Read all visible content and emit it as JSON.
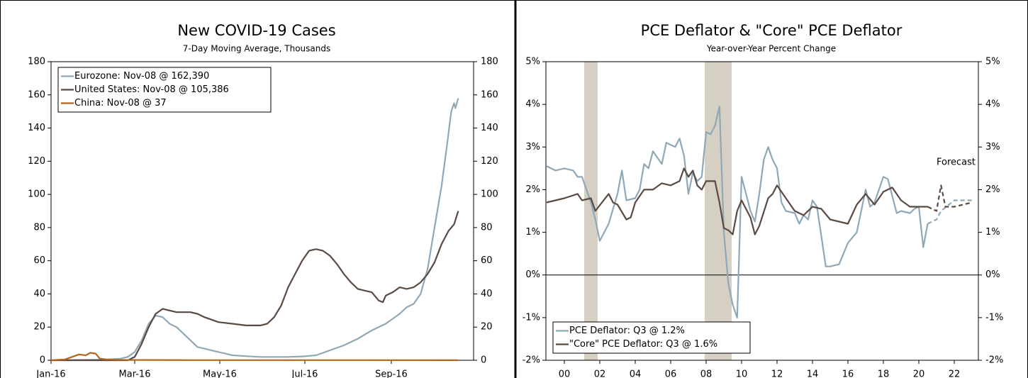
{
  "chart_data": [
    {
      "type": "line",
      "title": "New COVID-19 Cases",
      "subtitle": "7-Day Moving Average, Thousands",
      "xlim": [
        0,
        303
      ],
      "xticks": [
        {
          "value": 0,
          "label": "Jan-16"
        },
        {
          "value": 60,
          "label": "Mar-16"
        },
        {
          "value": 121,
          "label": "May-16"
        },
        {
          "value": 182,
          "label": "Jul-16"
        },
        {
          "value": 244,
          "label": "Sep-16"
        }
      ],
      "ylim": [
        0,
        180
      ],
      "yticks": [
        0,
        20,
        40,
        60,
        80,
        100,
        120,
        140,
        160,
        180
      ],
      "legend": "upper left",
      "series": [
        {
          "name": "Eurozone: Nov-08 @ 162,390",
          "color": "#8fa8b8",
          "x": [
            0,
            20,
            30,
            40,
            50,
            55,
            60,
            65,
            70,
            75,
            80,
            85,
            90,
            95,
            100,
            105,
            110,
            115,
            120,
            125,
            130,
            140,
            150,
            160,
            170,
            180,
            190,
            200,
            210,
            220,
            230,
            240,
            250,
            255,
            260,
            265,
            270,
            275,
            280,
            284,
            287,
            289,
            290,
            292
          ],
          "values": [
            0,
            0.2,
            0.3,
            0.5,
            1,
            2,
            5,
            12,
            22,
            27,
            26,
            22,
            20,
            16,
            12,
            8,
            7,
            6,
            5,
            4,
            3,
            2.5,
            2,
            2,
            2,
            2.3,
            3,
            6,
            9,
            13,
            18,
            22,
            28,
            32,
            34,
            40,
            55,
            80,
            105,
            130,
            150,
            155,
            152,
            158
          ]
        },
        {
          "name": "United States: Nov-08 @ 105,386",
          "color": "#5a4a42",
          "x": [
            0,
            55,
            60,
            65,
            70,
            75,
            80,
            85,
            90,
            100,
            105,
            110,
            120,
            130,
            140,
            150,
            155,
            160,
            165,
            170,
            175,
            180,
            185,
            190,
            195,
            200,
            205,
            210,
            215,
            220,
            225,
            230,
            235,
            238,
            240,
            245,
            250,
            255,
            260,
            265,
            270,
            275,
            280,
            285,
            289,
            292
          ],
          "values": [
            0,
            0,
            2,
            10,
            20,
            28,
            31,
            30,
            29,
            29,
            28,
            26,
            23,
            22,
            21,
            21,
            22,
            26,
            33,
            44,
            52,
            60,
            66,
            67,
            66,
            63,
            58,
            52,
            47,
            43,
            42,
            41,
            36,
            35,
            39,
            41,
            44,
            43,
            44,
            47,
            52,
            59,
            70,
            78,
            82,
            90
          ]
        },
        {
          "name": "China: Nov-08 @ 37",
          "color": "#b5651d",
          "x": [
            0,
            10,
            15,
            20,
            25,
            28,
            32,
            35,
            40,
            50,
            100,
            200,
            292
          ],
          "values": [
            0,
            0.5,
            2,
            3.5,
            3,
            4.5,
            4,
            1,
            0.5,
            0.2,
            0.1,
            0.1,
            0.04
          ]
        }
      ]
    },
    {
      "type": "line",
      "title": "PCE Deflator & \"Core\" PCE Deflator",
      "subtitle": "Year-over-Year Percent Change",
      "annotation": "Forecast",
      "forecast_start": 2020.5,
      "shaded_regions": [
        [
          2001.12,
          2001.88
        ],
        [
          2007.92,
          2009.44
        ]
      ],
      "shade_color": "#d6d0c4",
      "xlim": [
        1998.96,
        2023.36
      ],
      "xticks": [
        {
          "value": 2000,
          "label": "00"
        },
        {
          "value": 2002,
          "label": "02"
        },
        {
          "value": 2004,
          "label": "04"
        },
        {
          "value": 2006,
          "label": "06"
        },
        {
          "value": 2008,
          "label": "08"
        },
        {
          "value": 2010,
          "label": "10"
        },
        {
          "value": 2012,
          "label": "12"
        },
        {
          "value": 2014,
          "label": "14"
        },
        {
          "value": 2016,
          "label": "16"
        },
        {
          "value": 2018,
          "label": "18"
        },
        {
          "value": 2020,
          "label": "20"
        },
        {
          "value": 2022,
          "label": "22"
        }
      ],
      "ylim": [
        -2,
        5
      ],
      "yticks": [
        {
          "value": -2,
          "label": "-2%"
        },
        {
          "value": -1,
          "label": "-1%"
        },
        {
          "value": 0,
          "label": "0%"
        },
        {
          "value": 1,
          "label": "1%"
        },
        {
          "value": 2,
          "label": "2%"
        },
        {
          "value": 3,
          "label": "3%"
        },
        {
          "value": 4,
          "label": "4%"
        },
        {
          "value": 5,
          "label": "5%"
        }
      ],
      "legend": "lower left",
      "series": [
        {
          "name": "PCE Deflator: Q3 @ 1.2%",
          "color": "#8fa8b8",
          "x": [
            1999,
            1999.5,
            2000,
            2000.5,
            2000.75,
            2001,
            2001.5,
            2001.75,
            2002,
            2002.5,
            2003,
            2003.25,
            2003.5,
            2004,
            2004.25,
            2004.5,
            2004.75,
            2005,
            2005.5,
            2005.75,
            2006,
            2006.25,
            2006.5,
            2006.75,
            2007,
            2007.25,
            2007.5,
            2007.75,
            2008,
            2008.25,
            2008.5,
            2008.75,
            2009,
            2009.25,
            2009.5,
            2009.75,
            2010,
            2010.25,
            2010.5,
            2010.75,
            2011,
            2011.25,
            2011.5,
            2011.75,
            2012,
            2012.25,
            2012.5,
            2013,
            2013.25,
            2013.5,
            2013.75,
            2014,
            2014.25,
            2014.75,
            2015,
            2015.5,
            2016,
            2016.5,
            2017,
            2017.25,
            2017.5,
            2018,
            2018.25,
            2018.75,
            2019,
            2019.5,
            2019.75,
            2020,
            2020.25,
            2020.5,
            2021,
            2021.25,
            2022,
            2023
          ],
          "values": [
            2.55,
            2.45,
            2.5,
            2.45,
            2.3,
            2.3,
            1.7,
            1.3,
            0.8,
            1.2,
            1.9,
            2.45,
            1.75,
            1.8,
            2.0,
            2.6,
            2.5,
            2.9,
            2.6,
            3.1,
            3.05,
            3.0,
            3.2,
            2.8,
            1.9,
            2.4,
            2.2,
            2.3,
            3.35,
            3.3,
            3.5,
            3.95,
            1.0,
            -0.2,
            -0.7,
            -1.0,
            2.3,
            1.9,
            1.5,
            1.25,
            1.9,
            2.7,
            3.0,
            2.7,
            2.5,
            1.7,
            1.5,
            1.45,
            1.2,
            1.4,
            1.3,
            1.75,
            1.6,
            0.2,
            0.2,
            0.25,
            0.75,
            1.0,
            2.0,
            1.6,
            1.7,
            2.3,
            2.25,
            1.45,
            1.5,
            1.45,
            1.55,
            1.6,
            0.65,
            1.2,
            1.3,
            1.5,
            1.75,
            1.75
          ]
        },
        {
          "name": "\"Core\" PCE Deflator: Q3 @ 1.6%",
          "color": "#5a4a42",
          "x": [
            1999,
            1999.5,
            2000,
            2000.75,
            2001,
            2001.5,
            2001.75,
            2002.5,
            2002.75,
            2003,
            2003.5,
            2003.75,
            2004,
            2004.5,
            2005,
            2005.5,
            2006,
            2006.5,
            2006.75,
            2007,
            2007.25,
            2007.5,
            2007.75,
            2008,
            2008.5,
            2008.75,
            2009,
            2009.25,
            2009.5,
            2009.75,
            2010,
            2010.5,
            2010.75,
            2011,
            2011.5,
            2011.75,
            2012,
            2012.5,
            2013,
            2013.5,
            2014,
            2014.5,
            2015,
            2015.5,
            2016,
            2016.5,
            2017,
            2017.5,
            2018,
            2018.5,
            2019,
            2019.5,
            2020,
            2020.5,
            2021,
            2021.25,
            2021.5,
            2022,
            2023
          ],
          "values": [
            1.7,
            1.75,
            1.8,
            1.9,
            1.75,
            1.8,
            1.5,
            1.9,
            1.7,
            1.65,
            1.3,
            1.35,
            1.7,
            2.0,
            2.0,
            2.15,
            2.1,
            2.2,
            2.5,
            2.3,
            2.45,
            2.1,
            2.0,
            2.2,
            2.2,
            1.7,
            1.1,
            1.05,
            0.95,
            1.5,
            1.75,
            1.35,
            0.95,
            1.15,
            1.8,
            1.9,
            2.1,
            1.8,
            1.5,
            1.4,
            1.6,
            1.55,
            1.3,
            1.25,
            1.2,
            1.65,
            1.9,
            1.65,
            1.95,
            2.05,
            1.75,
            1.6,
            1.6,
            1.6,
            1.5,
            2.1,
            1.6,
            1.6,
            1.7
          ]
        }
      ]
    }
  ]
}
